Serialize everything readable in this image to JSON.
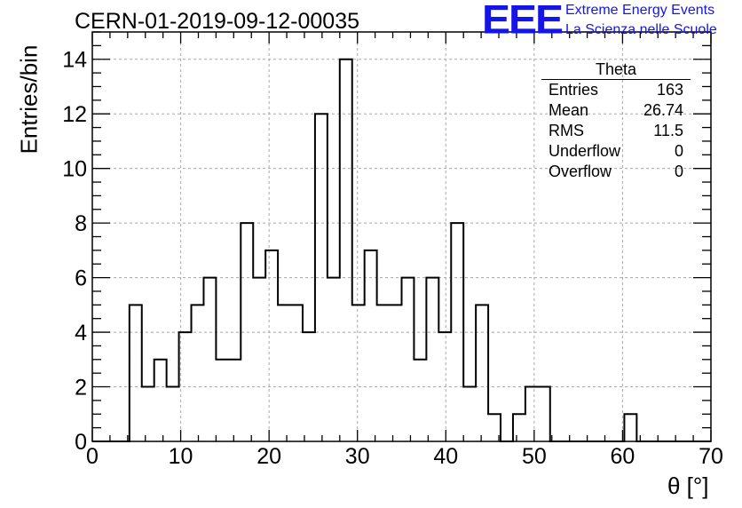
{
  "header": {
    "run_title": "CERN-01-2019-09-12-00035",
    "logo_text": "EEE",
    "logo_line1": "Extreme Energy Events",
    "logo_line2": "La Scienza nelle Scuole",
    "accent_color": "#1515e8"
  },
  "stats_box": {
    "title": "Theta",
    "rows": [
      {
        "label": "Entries",
        "value": "163"
      },
      {
        "label": "Mean",
        "value": "26.74"
      },
      {
        "label": "RMS",
        "value": "11.5"
      },
      {
        "label": "Underflow",
        "value": "0"
      },
      {
        "label": "Overflow",
        "value": "0"
      }
    ]
  },
  "chart_data": {
    "type": "bar",
    "histogram": true,
    "title": "CERN-01-2019-09-12-00035",
    "xlabel": "θ [°]",
    "ylabel": "Entries/bin",
    "xlim": [
      0,
      70
    ],
    "ylim": [
      0,
      15
    ],
    "bin_width": 1.4,
    "bin_edges_start": 0,
    "x_ticks": [
      0,
      10,
      20,
      30,
      40,
      50,
      60,
      70
    ],
    "y_ticks": [
      0,
      2,
      4,
      6,
      8,
      10,
      12,
      14
    ],
    "grid": true,
    "series": [
      {
        "values": [
          0,
          0,
          0,
          5,
          2,
          3,
          2,
          4,
          5,
          6,
          3,
          3,
          8,
          6,
          7,
          5,
          5,
          4,
          12,
          6,
          14,
          5,
          7,
          5,
          5,
          6,
          3,
          6,
          4,
          8,
          2,
          5,
          1,
          0,
          1,
          2,
          2,
          0,
          0,
          0,
          0,
          0,
          0,
          1,
          0,
          0,
          0,
          0,
          0,
          0
        ]
      }
    ]
  }
}
